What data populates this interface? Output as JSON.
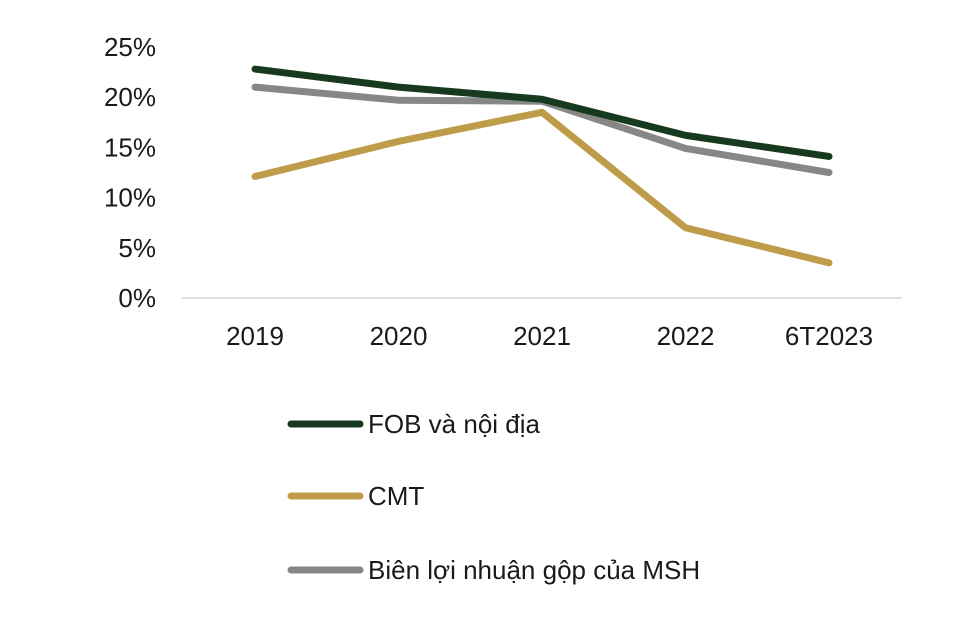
{
  "chart_data": {
    "type": "line",
    "title": "",
    "xlabel": "",
    "ylabel": "",
    "categories": [
      "2019",
      "2020",
      "2021",
      "2022",
      "6T2023"
    ],
    "ylim": [
      0,
      25
    ],
    "yticks": [
      0,
      5,
      10,
      15,
      20,
      25
    ],
    "ytick_labels": [
      "0%",
      "5%",
      "10%",
      "15%",
      "20%",
      "25%"
    ],
    "grid": false,
    "legend_position": "bottom",
    "series": [
      {
        "name": "FOB và nội địa",
        "color": "#173a1e",
        "values": [
          22.8,
          21.0,
          19.8,
          16.2,
          14.1
        ]
      },
      {
        "name": "CMT",
        "color": "#bf9c4a",
        "values": [
          12.1,
          15.6,
          18.5,
          7.0,
          3.5
        ]
      },
      {
        "name": "Biên lợi nhuận gộp của MSH",
        "color": "#878787",
        "values": [
          21.0,
          19.7,
          19.6,
          14.9,
          12.5
        ]
      }
    ]
  }
}
